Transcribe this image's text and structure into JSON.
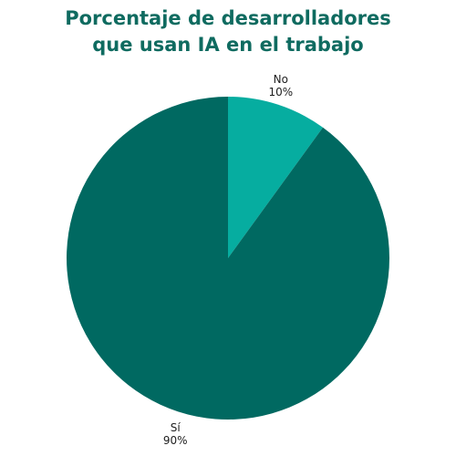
{
  "chart_data": {
    "type": "pie",
    "title_lines": [
      "Porcentaje de desarrolladores",
      "que usan IA en el trabajo"
    ],
    "slices": [
      {
        "label": "No",
        "value": 10,
        "value_label": "10%",
        "color": "#06ada0"
      },
      {
        "label": "Sí",
        "value": 90,
        "value_label": "90%",
        "color": "#006961"
      }
    ],
    "start_angle": "12 o'clock",
    "direction": "clockwise",
    "legend": "none"
  }
}
